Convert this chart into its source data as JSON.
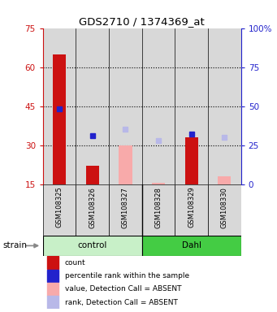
{
  "title": "GDS2710 / 1374369_at",
  "samples": [
    "GSM108325",
    "GSM108326",
    "GSM108327",
    "GSM108328",
    "GSM108329",
    "GSM108330"
  ],
  "group_labels": [
    "control",
    "Dahl"
  ],
  "group_colors": [
    "#c8f0c8",
    "#44cc44"
  ],
  "counts": [
    65,
    22,
    null,
    null,
    33,
    null
  ],
  "counts_absent": [
    null,
    null,
    30,
    15.5,
    null,
    18
  ],
  "ranks": [
    48,
    31,
    null,
    null,
    32,
    null
  ],
  "ranks_absent": [
    null,
    null,
    35,
    28,
    null,
    30
  ],
  "ylim_left": [
    15,
    75
  ],
  "ylim_right": [
    0,
    100
  ],
  "yticks_left": [
    15,
    30,
    45,
    60,
    75
  ],
  "yticks_right": [
    0,
    25,
    50,
    75,
    100
  ],
  "ytick_labels_right": [
    "0",
    "25",
    "50",
    "75",
    "100%"
  ],
  "hlines": [
    30,
    45,
    60
  ],
  "bar_width": 0.4,
  "color_count": "#cc1111",
  "color_rank": "#2222cc",
  "color_count_absent": "#f8aaaa",
  "color_rank_absent": "#b8b8e8",
  "bg_color": "#d8d8d8",
  "legend_items": [
    {
      "color": "#cc1111",
      "label": "count"
    },
    {
      "color": "#2222cc",
      "label": "percentile rank within the sample"
    },
    {
      "color": "#f8aaaa",
      "label": "value, Detection Call = ABSENT"
    },
    {
      "color": "#b8b8e8",
      "label": "rank, Detection Call = ABSENT"
    }
  ]
}
